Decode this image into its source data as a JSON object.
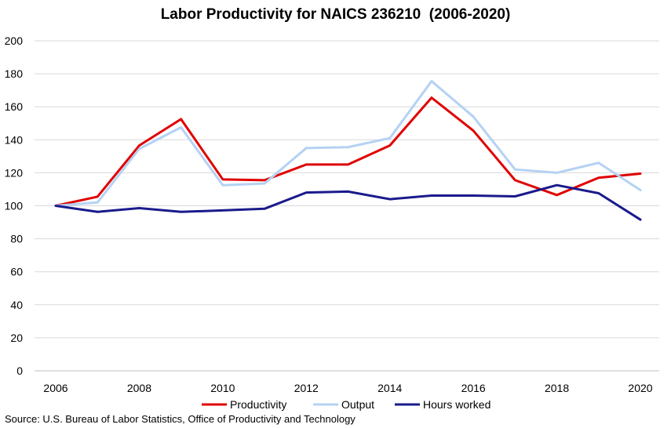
{
  "chart_data": {
    "type": "line",
    "title": "Labor Productivity for NAICS 236210  (2006-2020)",
    "xlabel": "",
    "ylabel": "",
    "x": [
      2006,
      2007,
      2008,
      2009,
      2010,
      2011,
      2012,
      2013,
      2014,
      2015,
      2016,
      2017,
      2018,
      2019,
      2020
    ],
    "x_ticks": [
      2006,
      2008,
      2010,
      2012,
      2014,
      2016,
      2018,
      2020
    ],
    "y_ticks": [
      0,
      20,
      40,
      60,
      80,
      100,
      120,
      140,
      160,
      180,
      200
    ],
    "xlim": [
      2006,
      2020
    ],
    "ylim": [
      0,
      200
    ],
    "grid": true,
    "legend_position": "bottom",
    "series": [
      {
        "name": "Productivity",
        "color": "#e00000",
        "values": [
          100,
          105.5,
          136.5,
          152.5,
          116,
          115.5,
          125,
          125,
          136.5,
          165.5,
          145.5,
          115.5,
          106.5,
          117,
          119.5
        ]
      },
      {
        "name": "Output",
        "color": "#b4d2f3",
        "values": [
          100,
          102,
          134.5,
          147.5,
          112.5,
          113.5,
          135,
          135.5,
          141,
          175.5,
          154,
          122,
          120,
          126,
          109.5
        ]
      },
      {
        "name": "Hours worked",
        "color": "#1a1a8c",
        "values": [
          100,
          96.3,
          98.6,
          96.3,
          97.2,
          98.2,
          108,
          108.6,
          104,
          106.2,
          106.2,
          105.7,
          112.5,
          107.6,
          91.6
        ]
      }
    ],
    "source": "Source:  U.S. Bureau of Labor Statistics, Office of Productivity and Technology"
  }
}
